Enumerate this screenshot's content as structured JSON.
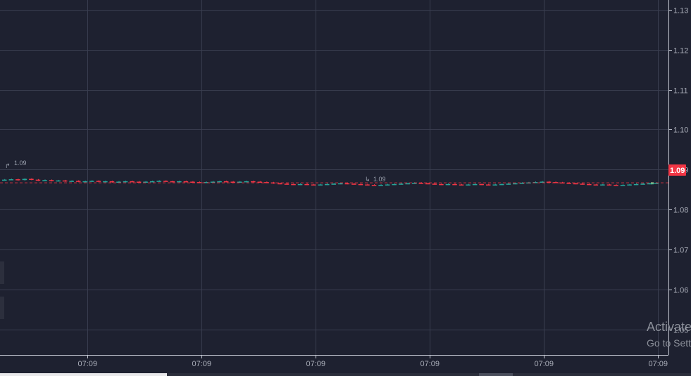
{
  "chart_data": {
    "type": "candlestick",
    "y_ticks": [
      "1.13",
      "1.12",
      "1.11",
      "1.10",
      "1.09",
      "1.08",
      "1.07",
      "1.06",
      "1.05"
    ],
    "y_tick_values": [
      1.13,
      1.12,
      1.11,
      1.1,
      1.09,
      1.08,
      1.07,
      1.06,
      1.05
    ],
    "x_ticks": [
      "07:09",
      "07:09",
      "07:09",
      "07:09",
      "07:09",
      "07:09"
    ],
    "ylim": [
      1.0437,
      1.1324
    ],
    "grid": true,
    "current_price_label": "1.09",
    "high_marker_label": "1.09",
    "low_marker_label": "1.09",
    "colors": {
      "up": "#26a69a",
      "down": "#f23645",
      "up_bright": "#3de0a0"
    },
    "prices": [
      1.0875,
      1.0876,
      1.0874,
      1.0877,
      1.0875,
      1.0873,
      1.0874,
      1.0872,
      1.0873,
      1.0871,
      1.0872,
      1.087,
      1.0871,
      1.0872,
      1.087,
      1.0871,
      1.0869,
      1.087,
      1.0871,
      1.087,
      1.0869,
      1.087,
      1.0871,
      1.0872,
      1.0871,
      1.087,
      1.0871,
      1.087,
      1.0869,
      1.0868,
      1.0869,
      1.087,
      1.0871,
      1.087,
      1.0869,
      1.087,
      1.0871,
      1.087,
      1.0869,
      1.0868,
      1.0866,
      1.0865,
      1.0864,
      1.0863,
      1.0864,
      1.0863,
      1.0862,
      1.0863,
      1.0864,
      1.0865,
      1.0866,
      1.0865,
      1.0864,
      1.0863,
      1.0862,
      1.0861,
      1.0862,
      1.0863,
      1.0864,
      1.0865,
      1.0866,
      1.0867,
      1.0866,
      1.0865,
      1.0864,
      1.0863,
      1.0864,
      1.0863,
      1.0862,
      1.0863,
      1.0864,
      1.0863,
      1.0862,
      1.0863,
      1.0864,
      1.0865,
      1.0866,
      1.0867,
      1.0868,
      1.0869,
      1.087,
      1.0869,
      1.0868,
      1.0867,
      1.0866,
      1.0865,
      1.0864,
      1.0863,
      1.0862,
      1.0863,
      1.0862,
      1.0861,
      1.0862,
      1.0863,
      1.0864,
      1.0865,
      1.0866,
      1.0867
    ],
    "current_price": 1.0867
  },
  "watermark": {
    "title": "Activate Windows",
    "subtitle": "Go to Settings to activate Windows."
  }
}
